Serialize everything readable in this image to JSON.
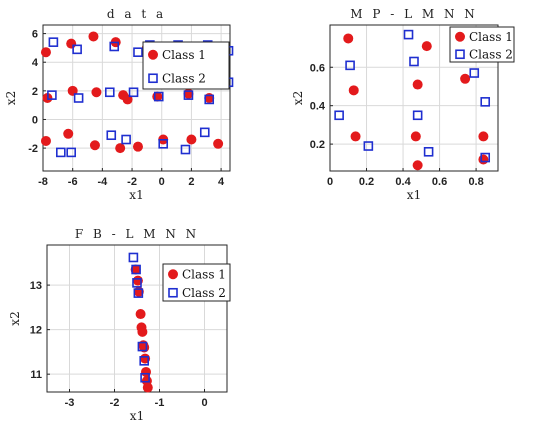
{
  "colors": {
    "class1": "#e31a1c",
    "class2": "#1f2fd0"
  },
  "chart_data": [
    {
      "id": "data",
      "type": "scatter",
      "title": "d a t a",
      "xlabel": "x1",
      "ylabel": "x2",
      "xlim": [
        -8,
        4.6
      ],
      "ylim": [
        -3.6,
        6.6
      ],
      "xticks": [
        -8,
        -6,
        -4,
        -2,
        0,
        2,
        4
      ],
      "yticks": [
        -2,
        0,
        2,
        4,
        6
      ],
      "grid": true,
      "legend": "top-right",
      "series": [
        {
          "name": "Class 1",
          "marker": "filled-circle",
          "points": [
            [
              -7.8,
              4.7
            ],
            [
              -6.1,
              5.3
            ],
            [
              -4.6,
              5.8
            ],
            [
              -3.1,
              5.4
            ],
            [
              -1.0,
              5.0
            ],
            [
              0.4,
              5.1
            ],
            [
              2.2,
              5.1
            ],
            [
              3.4,
              4.7
            ],
            [
              -7.7,
              1.5
            ],
            [
              -6.0,
              2.0
            ],
            [
              -4.4,
              1.9
            ],
            [
              -2.6,
              1.7
            ],
            [
              -2.3,
              1.4
            ],
            [
              -0.3,
              1.6
            ],
            [
              1.8,
              1.8
            ],
            [
              3.2,
              1.5
            ],
            [
              -7.8,
              -1.5
            ],
            [
              -6.3,
              -1.0
            ],
            [
              -4.5,
              -1.8
            ],
            [
              -2.8,
              -2.0
            ],
            [
              -1.6,
              -1.9
            ],
            [
              0.1,
              -1.4
            ],
            [
              2.0,
              -1.4
            ],
            [
              3.8,
              -1.7
            ]
          ]
        },
        {
          "name": "Class 2",
          "marker": "open-square",
          "points": [
            [
              -7.3,
              5.4
            ],
            [
              -5.7,
              4.9
            ],
            [
              -3.2,
              5.1
            ],
            [
              -1.6,
              4.7
            ],
            [
              -0.8,
              5.2
            ],
            [
              1.1,
              5.2
            ],
            [
              3.1,
              5.2
            ],
            [
              4.5,
              4.8
            ],
            [
              -7.4,
              1.7
            ],
            [
              -5.6,
              1.5
            ],
            [
              -3.5,
              1.9
            ],
            [
              -1.9,
              1.9
            ],
            [
              -0.2,
              1.6
            ],
            [
              1.8,
              1.7
            ],
            [
              3.2,
              1.4
            ],
            [
              4.5,
              2.6
            ],
            [
              -6.8,
              -2.3
            ],
            [
              -6.1,
              -2.3
            ],
            [
              -3.4,
              -1.1
            ],
            [
              -2.4,
              -1.4
            ],
            [
              0.1,
              -1.7
            ],
            [
              1.6,
              -2.1
            ],
            [
              2.9,
              -0.9
            ]
          ]
        }
      ]
    },
    {
      "id": "mp",
      "type": "scatter",
      "title": "M P - L M N N",
      "xlabel": "x1",
      "ylabel": "x2",
      "xlim": [
        0,
        0.92
      ],
      "ylim": [
        0.06,
        0.82
      ],
      "xticks": [
        0,
        0.2,
        0.4,
        0.6,
        0.8
      ],
      "yticks": [
        0.2,
        0.4,
        0.6
      ],
      "xtick_labels": [
        "0",
        "0.2",
        "0.4",
        "0.6",
        "0.8"
      ],
      "ytick_labels": [
        "0.2",
        "0.4",
        "0.6"
      ],
      "grid": true,
      "legend": "top-right",
      "series": [
        {
          "name": "Class 1",
          "marker": "filled-circle",
          "points": [
            [
              0.1,
              0.75
            ],
            [
              0.53,
              0.71
            ],
            [
              0.13,
              0.48
            ],
            [
              0.48,
              0.51
            ],
            [
              0.74,
              0.54
            ],
            [
              0.14,
              0.24
            ],
            [
              0.47,
              0.24
            ],
            [
              0.84,
              0.24
            ],
            [
              0.48,
              0.09
            ],
            [
              0.84,
              0.12
            ]
          ]
        },
        {
          "name": "Class 2",
          "marker": "open-square",
          "points": [
            [
              0.43,
              0.77
            ],
            [
              0.11,
              0.61
            ],
            [
              0.46,
              0.63
            ],
            [
              0.79,
              0.57
            ],
            [
              0.05,
              0.35
            ],
            [
              0.48,
              0.35
            ],
            [
              0.85,
              0.42
            ],
            [
              0.21,
              0.19
            ],
            [
              0.54,
              0.16
            ],
            [
              0.85,
              0.13
            ]
          ]
        }
      ]
    },
    {
      "id": "fb",
      "type": "scatter",
      "title": "F B - L M N N",
      "xlabel": "x1",
      "ylabel": "x2",
      "xlim": [
        -3.5,
        0.5
      ],
      "ylim": [
        10.6,
        13.9
      ],
      "xticks": [
        -3,
        -2,
        -1,
        0
      ],
      "yticks": [
        11,
        12,
        13
      ],
      "grid": true,
      "legend": "top-right",
      "series": [
        {
          "name": "Class 1",
          "marker": "filled-circle",
          "points": [
            [
              -1.53,
              13.35
            ],
            [
              -1.48,
              13.1
            ],
            [
              -1.46,
              12.85
            ],
            [
              -1.42,
              12.35
            ],
            [
              -1.4,
              12.05
            ],
            [
              -1.38,
              11.95
            ],
            [
              -1.36,
              11.65
            ],
            [
              -1.34,
              11.6
            ],
            [
              -1.32,
              11.35
            ],
            [
              -1.3,
              11.05
            ],
            [
              -1.28,
              10.85
            ],
            [
              -1.26,
              10.7
            ]
          ]
        },
        {
          "name": "Class 2",
          "marker": "open-square",
          "points": [
            [
              -1.58,
              13.62
            ],
            [
              -1.52,
              13.35
            ],
            [
              -1.5,
              13.05
            ],
            [
              -1.47,
              12.82
            ],
            [
              -1.38,
              11.62
            ],
            [
              -1.34,
              11.3
            ],
            [
              -1.32,
              10.92
            ]
          ]
        }
      ]
    }
  ]
}
